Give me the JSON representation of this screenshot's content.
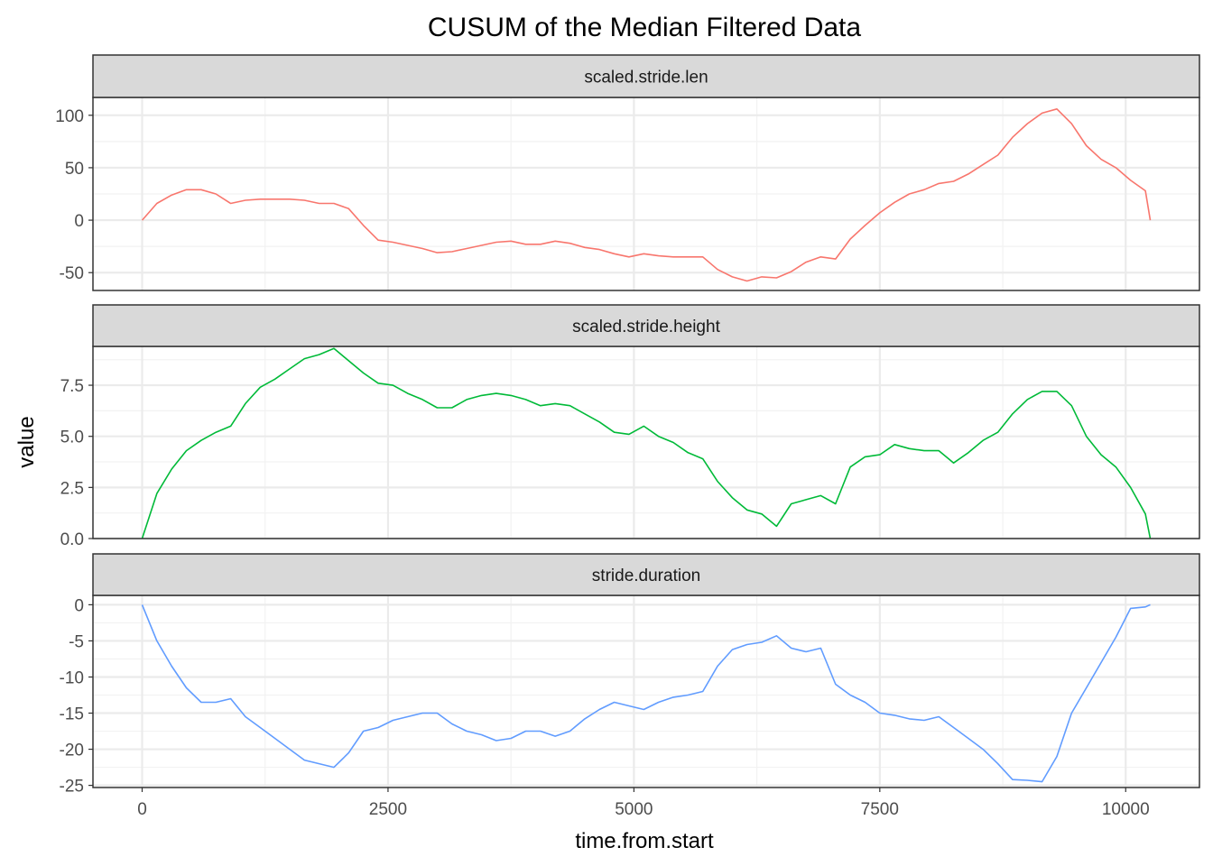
{
  "chart_data": {
    "type": "line",
    "title": "CUSUM of the Median Filtered Data",
    "xlabel": "time.from.start",
    "ylabel": "value",
    "xlim": [
      -500,
      10750
    ],
    "x_ticks": [
      0,
      2500,
      5000,
      7500,
      10000
    ],
    "x_tick_labels": [
      "0",
      "2500",
      "5000",
      "7500",
      "10000"
    ],
    "grid": true,
    "legend": "none",
    "panels": [
      {
        "name": "scaled.stride.len",
        "color": "#F8766D",
        "ylim": [
          -67,
          117
        ],
        "y_ticks": [
          -50,
          0,
          50,
          100
        ],
        "y_tick_labels": [
          "-50",
          "0",
          "50",
          "100"
        ],
        "x": [
          0,
          150,
          300,
          450,
          600,
          750,
          900,
          1050,
          1200,
          1350,
          1500,
          1650,
          1800,
          1950,
          2100,
          2250,
          2400,
          2550,
          2700,
          2850,
          3000,
          3150,
          3300,
          3450,
          3600,
          3750,
          3900,
          4050,
          4200,
          4350,
          4500,
          4650,
          4800,
          4950,
          5100,
          5250,
          5400,
          5550,
          5700,
          5850,
          6000,
          6150,
          6300,
          6450,
          6600,
          6750,
          6900,
          7050,
          7200,
          7350,
          7500,
          7650,
          7800,
          7950,
          8100,
          8250,
          8400,
          8550,
          8700,
          8850,
          9000,
          9150,
          9300,
          9450,
          9600,
          9750,
          9900,
          10050,
          10200,
          10250
        ],
        "values": [
          0,
          16,
          24,
          29,
          29,
          25,
          16,
          19,
          20,
          20,
          20,
          19,
          16,
          16,
          11,
          -5,
          -19,
          -21,
          -24,
          -27,
          -31,
          -30,
          -27,
          -24,
          -21,
          -20,
          -23,
          -23,
          -20,
          -22,
          -26,
          -28,
          -32,
          -35,
          -32,
          -34,
          -35,
          -35,
          -35,
          -47,
          -54,
          -58,
          -54,
          -55,
          -49,
          -40,
          -35,
          -37,
          -18,
          -5,
          7,
          17,
          25,
          29,
          35,
          37,
          44,
          53,
          62,
          79,
          92,
          102,
          106,
          92,
          71,
          58,
          50,
          38,
          28,
          0
        ]
      },
      {
        "name": "scaled.stride.height",
        "color": "#00BA38",
        "ylim": [
          0,
          9.4
        ],
        "y_ticks": [
          0,
          2.5,
          5,
          7.5
        ],
        "y_tick_labels": [
          "0.0",
          "2.5",
          "5.0",
          "7.5"
        ],
        "x": [
          0,
          150,
          300,
          450,
          600,
          750,
          900,
          1050,
          1200,
          1350,
          1500,
          1650,
          1800,
          1950,
          2100,
          2250,
          2400,
          2550,
          2700,
          2850,
          3000,
          3150,
          3300,
          3450,
          3600,
          3750,
          3900,
          4050,
          4200,
          4350,
          4500,
          4650,
          4800,
          4950,
          5100,
          5250,
          5400,
          5550,
          5700,
          5850,
          6000,
          6150,
          6300,
          6450,
          6600,
          6750,
          6900,
          7050,
          7200,
          7350,
          7500,
          7650,
          7800,
          7950,
          8100,
          8250,
          8400,
          8550,
          8700,
          8850,
          9000,
          9150,
          9300,
          9450,
          9600,
          9750,
          9900,
          10050,
          10200,
          10250
        ],
        "values": [
          0,
          2.2,
          3.4,
          4.3,
          4.8,
          5.2,
          5.5,
          6.6,
          7.4,
          7.8,
          8.3,
          8.8,
          9.0,
          9.3,
          8.7,
          8.1,
          7.6,
          7.5,
          7.1,
          6.8,
          6.4,
          6.4,
          6.8,
          7.0,
          7.1,
          7.0,
          6.8,
          6.5,
          6.6,
          6.5,
          6.1,
          5.7,
          5.2,
          5.1,
          5.5,
          5.0,
          4.7,
          4.2,
          3.9,
          2.8,
          2.0,
          1.4,
          1.2,
          0.6,
          1.7,
          1.9,
          2.1,
          1.7,
          3.5,
          4.0,
          4.1,
          4.6,
          4.4,
          4.3,
          4.3,
          3.7,
          4.2,
          4.8,
          5.2,
          6.1,
          6.8,
          7.2,
          7.2,
          6.5,
          5.0,
          4.1,
          3.5,
          2.5,
          1.2,
          0
        ]
      },
      {
        "name": "stride.duration",
        "color": "#619CFF",
        "ylim": [
          -25.3,
          1.3
        ],
        "y_ticks": [
          -25,
          -20,
          -15,
          -10,
          -5,
          0
        ],
        "y_tick_labels": [
          "-25",
          "-20",
          "-15",
          "-10",
          "-5",
          "0"
        ],
        "x": [
          0,
          150,
          300,
          450,
          600,
          750,
          900,
          1050,
          1200,
          1350,
          1500,
          1650,
          1800,
          1950,
          2100,
          2250,
          2400,
          2550,
          2700,
          2850,
          3000,
          3150,
          3300,
          3450,
          3600,
          3750,
          3900,
          4050,
          4200,
          4350,
          4500,
          4650,
          4800,
          4950,
          5100,
          5250,
          5400,
          5550,
          5700,
          5850,
          6000,
          6150,
          6300,
          6450,
          6600,
          6750,
          6900,
          7050,
          7200,
          7350,
          7500,
          7650,
          7800,
          7950,
          8100,
          8250,
          8400,
          8550,
          8700,
          8850,
          9000,
          9150,
          9300,
          9450,
          9600,
          9750,
          9900,
          10050,
          10200,
          10250
        ],
        "values": [
          0,
          -5,
          -8.5,
          -11.5,
          -13.5,
          -13.5,
          -13,
          -15.5,
          -17,
          -18.5,
          -20,
          -21.5,
          -22,
          -22.5,
          -20.5,
          -17.5,
          -17,
          -16,
          -15.5,
          -15,
          -15,
          -16.5,
          -17.5,
          -18,
          -18.8,
          -18.5,
          -17.5,
          -17.5,
          -18.2,
          -17.5,
          -15.8,
          -14.5,
          -13.5,
          -14,
          -14.5,
          -13.5,
          -12.8,
          -12.5,
          -12,
          -8.5,
          -6.2,
          -5.5,
          -5.2,
          -4.3,
          -6,
          -6.5,
          -6,
          -11,
          -12.5,
          -13.5,
          -15,
          -15.3,
          -15.8,
          -16,
          -15.5,
          -17,
          -18.5,
          -20,
          -22,
          -24.2,
          -24.3,
          -24.5,
          -21,
          -15,
          -11.5,
          -8,
          -4.5,
          -0.5,
          -0.3,
          0
        ]
      }
    ]
  }
}
